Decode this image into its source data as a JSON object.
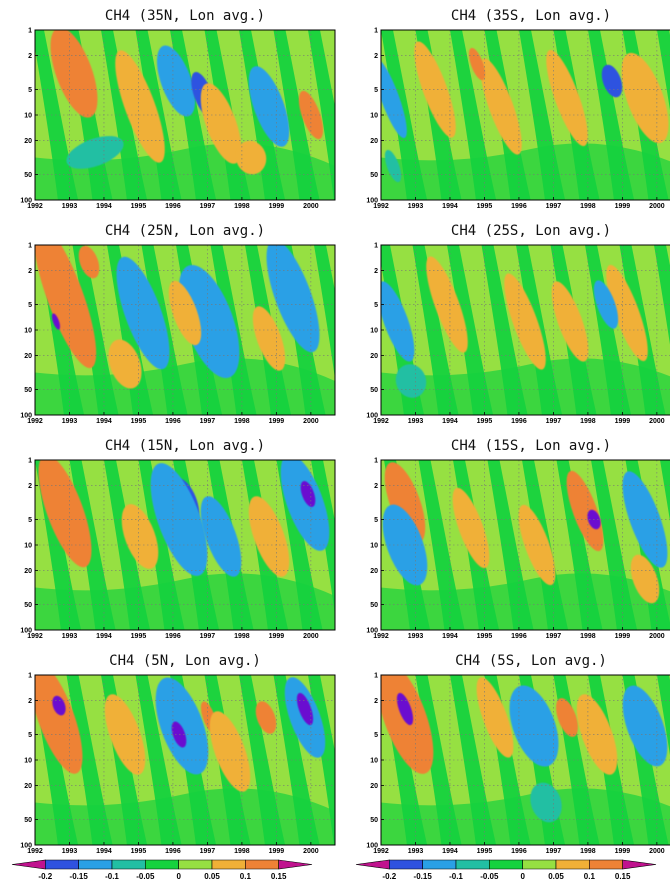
{
  "palette": {
    "magenta": "#c0128e",
    "purple": "#6a0ad0",
    "blue": "#2f52e0",
    "sky": "#2aa0e6",
    "teal": "#22bfa3",
    "green": "#16d23e",
    "lime": "#96e042",
    "light_orange": "#f0b037",
    "orange": "#ee8236",
    "grid": "#777777"
  },
  "chart_data": [
    {
      "type": "heatmap",
      "title": "CH4 (35N, Lon avg.)",
      "x_ticks": [
        "1992",
        "1993",
        "1994",
        "1995",
        "1996",
        "1997",
        "1998",
        "1999",
        "2000"
      ],
      "y_ticks": [
        "1",
        "2",
        "5",
        "10",
        "20",
        "50",
        "100"
      ],
      "y_scale": "log",
      "y_range": [
        100,
        1
      ],
      "x_range": [
        1992,
        2000.7
      ],
      "grid": "dotted"
    },
    {
      "type": "heatmap",
      "title": "CH4 (35S, Lon avg.)",
      "x_ticks": [
        "1992",
        "1993",
        "1994",
        "1995",
        "1996",
        "1997",
        "1998",
        "1999",
        "2000"
      ],
      "y_ticks": [
        "1",
        "2",
        "5",
        "10",
        "20",
        "50",
        "100"
      ],
      "y_scale": "log",
      "y_range": [
        100,
        1
      ],
      "x_range": [
        1992,
        2000.7
      ],
      "grid": "dotted"
    },
    {
      "type": "heatmap",
      "title": "CH4 (25N, Lon avg.)",
      "x_ticks": [
        "1992",
        "1993",
        "1994",
        "1995",
        "1996",
        "1997",
        "1998",
        "1999",
        "2000"
      ],
      "y_ticks": [
        "1",
        "2",
        "5",
        "10",
        "20",
        "50",
        "100"
      ],
      "y_scale": "log",
      "y_range": [
        100,
        1
      ],
      "x_range": [
        1992,
        2000.7
      ],
      "grid": "dotted"
    },
    {
      "type": "heatmap",
      "title": "CH4 (25S, Lon avg.)",
      "x_ticks": [
        "1992",
        "1993",
        "1994",
        "1995",
        "1996",
        "1997",
        "1998",
        "1999",
        "2000"
      ],
      "y_ticks": [
        "1",
        "2",
        "5",
        "10",
        "20",
        "50",
        "100"
      ],
      "y_scale": "log",
      "y_range": [
        100,
        1
      ],
      "x_range": [
        1992,
        2000.7
      ],
      "grid": "dotted"
    },
    {
      "type": "heatmap",
      "title": "CH4 (15N, Lon avg.)",
      "x_ticks": [
        "1992",
        "1993",
        "1994",
        "1995",
        "1996",
        "1997",
        "1998",
        "1999",
        "2000"
      ],
      "y_ticks": [
        "1",
        "2",
        "5",
        "10",
        "20",
        "50",
        "100"
      ],
      "y_scale": "log",
      "y_range": [
        100,
        1
      ],
      "x_range": [
        1992,
        2000.7
      ],
      "grid": "dotted"
    },
    {
      "type": "heatmap",
      "title": "CH4 (15S, Lon avg.)",
      "x_ticks": [
        "1992",
        "1993",
        "1994",
        "1995",
        "1996",
        "1997",
        "1998",
        "1999",
        "2000"
      ],
      "y_ticks": [
        "1",
        "2",
        "5",
        "10",
        "20",
        "50",
        "100"
      ],
      "y_scale": "log",
      "y_range": [
        100,
        1
      ],
      "x_range": [
        1992,
        2000.7
      ],
      "grid": "dotted"
    },
    {
      "type": "heatmap",
      "title": "CH4 (5N, Lon avg.)",
      "x_ticks": [
        "1992",
        "1993",
        "1994",
        "1995",
        "1996",
        "1997",
        "1998",
        "1999",
        "2000"
      ],
      "y_ticks": [
        "1",
        "2",
        "5",
        "10",
        "20",
        "50",
        "100"
      ],
      "y_scale": "log",
      "y_range": [
        100,
        1
      ],
      "x_range": [
        1992,
        2000.7
      ],
      "grid": "dotted"
    },
    {
      "type": "heatmap",
      "title": "CH4 (5S, Lon avg.)",
      "x_ticks": [
        "1992",
        "1993",
        "1994",
        "1995",
        "1996",
        "1997",
        "1998",
        "1999",
        "2000"
      ],
      "y_ticks": [
        "1",
        "2",
        "5",
        "10",
        "20",
        "50",
        "100"
      ],
      "y_scale": "log",
      "y_range": [
        100,
        1
      ],
      "x_range": [
        1992,
        2000.7
      ],
      "grid": "dotted"
    }
  ],
  "colorbar": {
    "levels": [
      "-0.2",
      "-0.15",
      "-0.1",
      "-0.05",
      "0",
      "0.05",
      "0.1",
      "0.15"
    ],
    "colors": [
      "#c0128e",
      "#2f52e0",
      "#2aa0e6",
      "#22bfa3",
      "#16d23e",
      "#96e042",
      "#f0b037",
      "#ee8236",
      "#c0128e"
    ]
  }
}
